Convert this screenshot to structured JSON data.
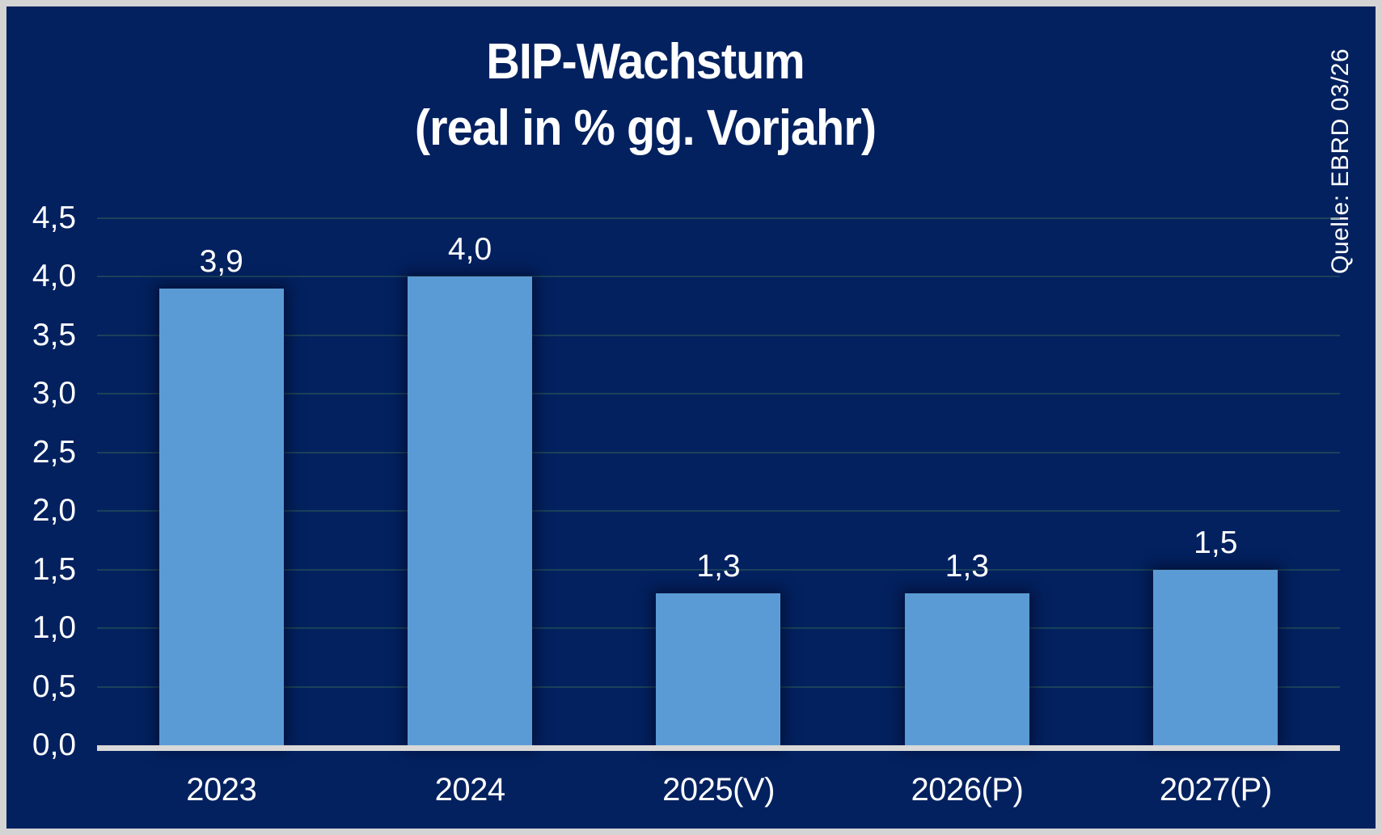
{
  "title": {
    "line1": "BIP-Wachstum",
    "line2": "(real in % gg. Vorjahr)"
  },
  "source": "Quelle: EBRD 03/26",
  "colors": {
    "background": "#03215F",
    "bar": "#5B9BD5",
    "axis_line": "#D9D9D9",
    "frame": "#D4D4D4",
    "text": "#FFFFFF",
    "gridline_rgba": "rgba(45,95,85,0.55)"
  },
  "chart_data": {
    "type": "bar",
    "title": "BIP-Wachstum (real in % gg. Vorjahr)",
    "categories": [
      "2023",
      "2024",
      "2025(V)",
      "2026(P)",
      "2027(P)"
    ],
    "values": [
      3.9,
      4.0,
      1.3,
      1.3,
      1.5
    ],
    "value_labels": [
      "3,9",
      "4,0",
      "1,3",
      "1,3",
      "1,5"
    ],
    "y_tick_values": [
      4.5,
      4.0,
      3.5,
      3.0,
      2.5,
      2.0,
      1.5,
      1.0,
      0.5,
      0.0
    ],
    "y_tick_labels": [
      "4,5",
      "4,0",
      "3,5",
      "3,0",
      "2,5",
      "2,0",
      "1,5",
      "1,0",
      "0,5",
      "0,0"
    ],
    "ylim": [
      0,
      4.5
    ],
    "xlabel": "",
    "ylabel": "",
    "grid": true,
    "legend": false,
    "source_note": "Quelle: EBRD 03/26"
  }
}
